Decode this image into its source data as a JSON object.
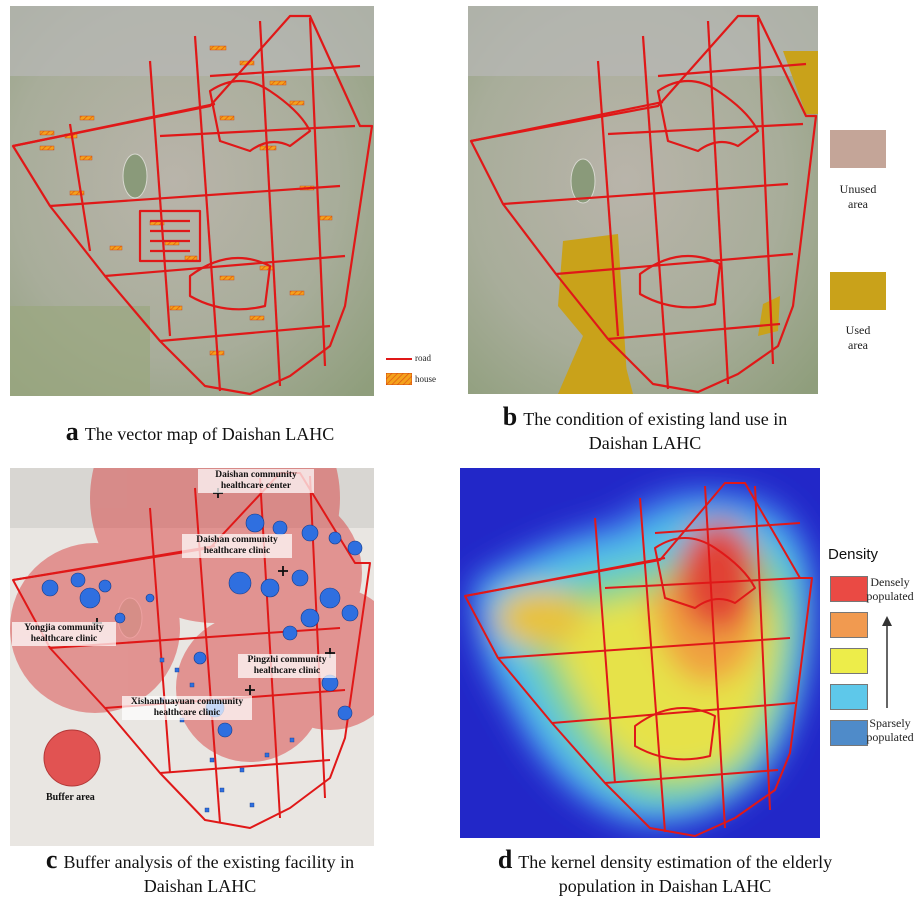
{
  "panels": {
    "a": {
      "letter": "a",
      "caption_lines": [
        "The vector map of Daishan LAHC"
      ],
      "legend": {
        "road": "road",
        "house": "house"
      },
      "colors": {
        "road": "#e01818",
        "house": "#f4a21c"
      }
    },
    "b": {
      "letter": "b",
      "caption_lines": [
        "The condition of existing land use in",
        "Daishan  LAHC"
      ],
      "legend": {
        "unused_lines": [
          "Unused",
          "area"
        ],
        "used_lines": [
          "Used",
          "area"
        ]
      },
      "colors": {
        "unused": "#c4a598",
        "used": "#c9a21a"
      }
    },
    "c": {
      "letter": "c",
      "caption_lines": [
        "Buffer analysis of the existing facility in",
        "Daishan LAHC"
      ],
      "facilities": [
        {
          "lines": [
            "Daishan community",
            "healthcare center"
          ]
        },
        {
          "lines": [
            "Daishan community",
            "healthcare clinic"
          ]
        },
        {
          "lines": [
            "Yongjia community",
            "healthcare clinic"
          ]
        },
        {
          "lines": [
            "Pingzhi community",
            "healthcare clinic"
          ]
        },
        {
          "lines": [
            "Xishanhuayuan community",
            "healthcare clinic"
          ]
        }
      ],
      "buffer_label": "Buffer area",
      "colors": {
        "buffer": "#e03030",
        "elderly": "#2f6fe0"
      }
    },
    "d": {
      "letter": "d",
      "caption_lines": [
        "The kernel density estimation of the elderly",
        "population in Daishan LAHC"
      ],
      "density_title": "Density",
      "dense_lines": [
        "Densely",
        "populated"
      ],
      "sparse_lines": [
        "Sparsely",
        "populated"
      ],
      "swatch_colors": [
        "#ea4a44",
        "#f19a50",
        "#eded4a",
        "#5ec8ea",
        "#4f8bc9"
      ]
    }
  }
}
